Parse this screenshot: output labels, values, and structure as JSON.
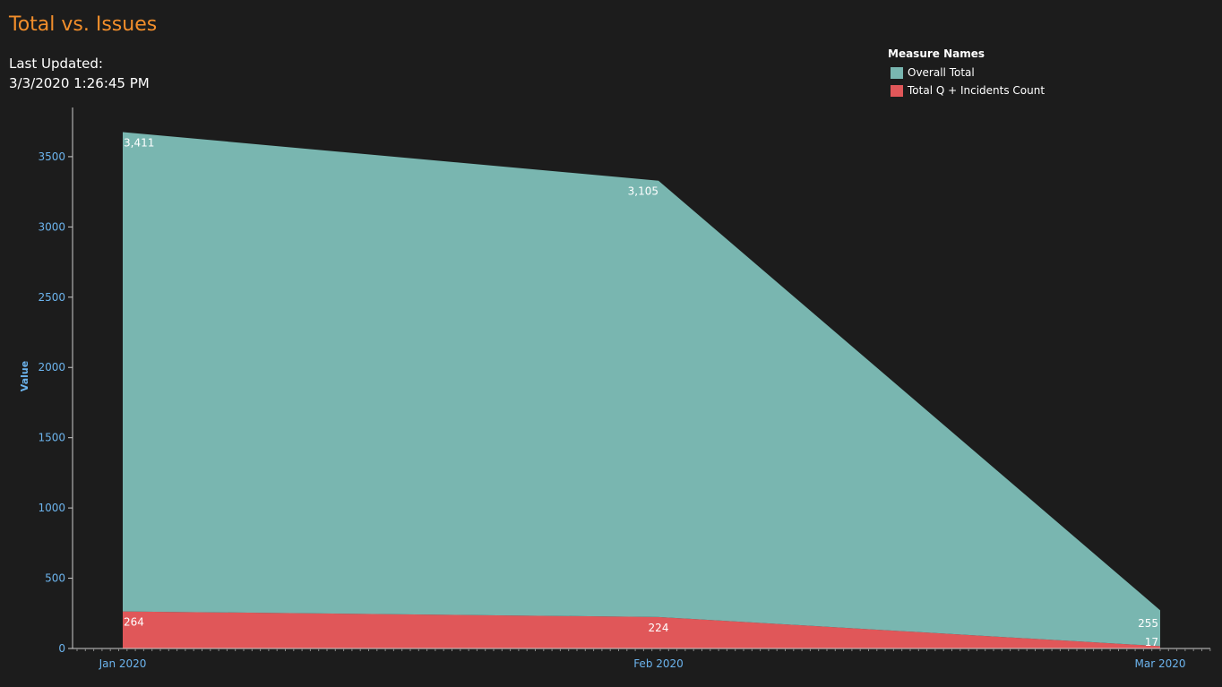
{
  "header": {
    "title": "Total vs. Issues",
    "last_updated_label": "Last Updated:",
    "last_updated_value": "3/3/2020 1:26:45 PM"
  },
  "legend": {
    "title": "Measure Names",
    "items": [
      {
        "label": "Overall Total",
        "color": "#79b6b0"
      },
      {
        "label": "Total Q + Incidents Count",
        "color": "#e05759"
      }
    ]
  },
  "chart_data": {
    "type": "area",
    "stacked": true,
    "categories": [
      "Jan 2020",
      "Feb 2020",
      "Mar 2020"
    ],
    "series": [
      {
        "name": "Total Q + Incidents Count",
        "values": [
          264,
          224,
          17
        ],
        "labels": [
          "264",
          "224",
          "17"
        ],
        "color": "#e05759"
      },
      {
        "name": "Overall Total",
        "values": [
          3411,
          3105,
          255
        ],
        "labels": [
          "3,411",
          "3,105",
          "255"
        ],
        "color": "#79b6b0"
      }
    ],
    "ylabel": "Value",
    "xlabel": "",
    "ylim": [
      0,
      3850
    ],
    "yticks": [
      0,
      500,
      1000,
      1500,
      2000,
      2500,
      3000,
      3500
    ],
    "grid": false,
    "axis_color": "#6cb4ee",
    "legend_position": "top-right"
  }
}
